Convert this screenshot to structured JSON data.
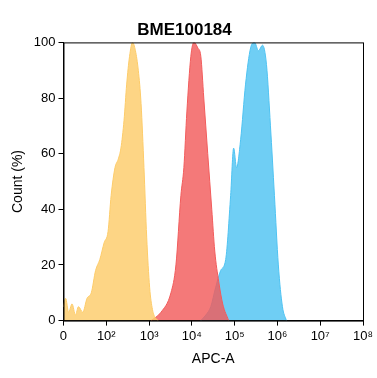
{
  "chart_data": {
    "type": "area",
    "title": "BME100184",
    "x_label": "APC-A",
    "y_label": "Count (%)",
    "log": "x",
    "grid": false,
    "xlim": [
      0,
      100000000
    ],
    "xticks": [
      0,
      {
        "value": 100,
        "label": "10²"
      },
      {
        "value": 1000,
        "label": "10³"
      },
      {
        "value": 10000,
        "label": "10⁴"
      },
      {
        "value": 100000,
        "label": "10⁵"
      },
      {
        "value": 1000000,
        "label": "10⁶"
      },
      {
        "value": 10000000,
        "label": "10⁷"
      },
      {
        "value": 100000000,
        "label": "10⁸"
      }
    ],
    "ylim": [
      0,
      100
    ],
    "yticks": [
      0,
      20,
      40,
      60,
      80,
      100
    ],
    "series": [
      {
        "color": "#fdcc6a",
        "x": [
          0,
          5,
          12,
          20,
          28,
          35,
          45,
          55,
          65,
          75,
          85,
          95,
          110,
          130,
          160,
          190,
          220,
          260,
          300,
          350,
          410,
          480,
          560,
          650,
          760,
          880,
          1030,
          1200,
          1400,
          1650
        ],
        "values": [
          5,
          8,
          3,
          6,
          2,
          5,
          3,
          8,
          10,
          18,
          22,
          28,
          32,
          45,
          55,
          58,
          62,
          72,
          85,
          95,
          100,
          97,
          90,
          78,
          55,
          30,
          12,
          4,
          1,
          0
        ]
      },
      {
        "color": "#f25c5c",
        "x": [
          1114,
          1900,
          3250,
          4250,
          5550,
          6510,
          7650,
          9480,
          11140,
          13800,
          16200,
          19000,
          23500,
          29200,
          34300,
          42500,
          52600,
          72500
        ],
        "values": [
          0,
          3,
          10,
          20,
          45,
          55,
          75,
          95,
          100,
          98,
          95,
          80,
          60,
          40,
          25,
          14,
          6,
          0
        ]
      },
      {
        "color": "#4fc3f2",
        "x": [
          16200,
          21200,
          27700,
          36100,
          47200,
          61800,
          80700,
          94800,
          111000,
          138000,
          180000,
          236000,
          292000,
          361000,
          448000,
          555000,
          687000,
          851000,
          1050000,
          1310000,
          1620000
        ],
        "values": [
          0,
          2,
          5,
          12,
          18,
          22,
          45,
          62,
          55,
          65,
          85,
          98,
          100,
          97,
          99,
          92,
          70,
          45,
          20,
          5,
          0
        ]
      }
    ]
  }
}
